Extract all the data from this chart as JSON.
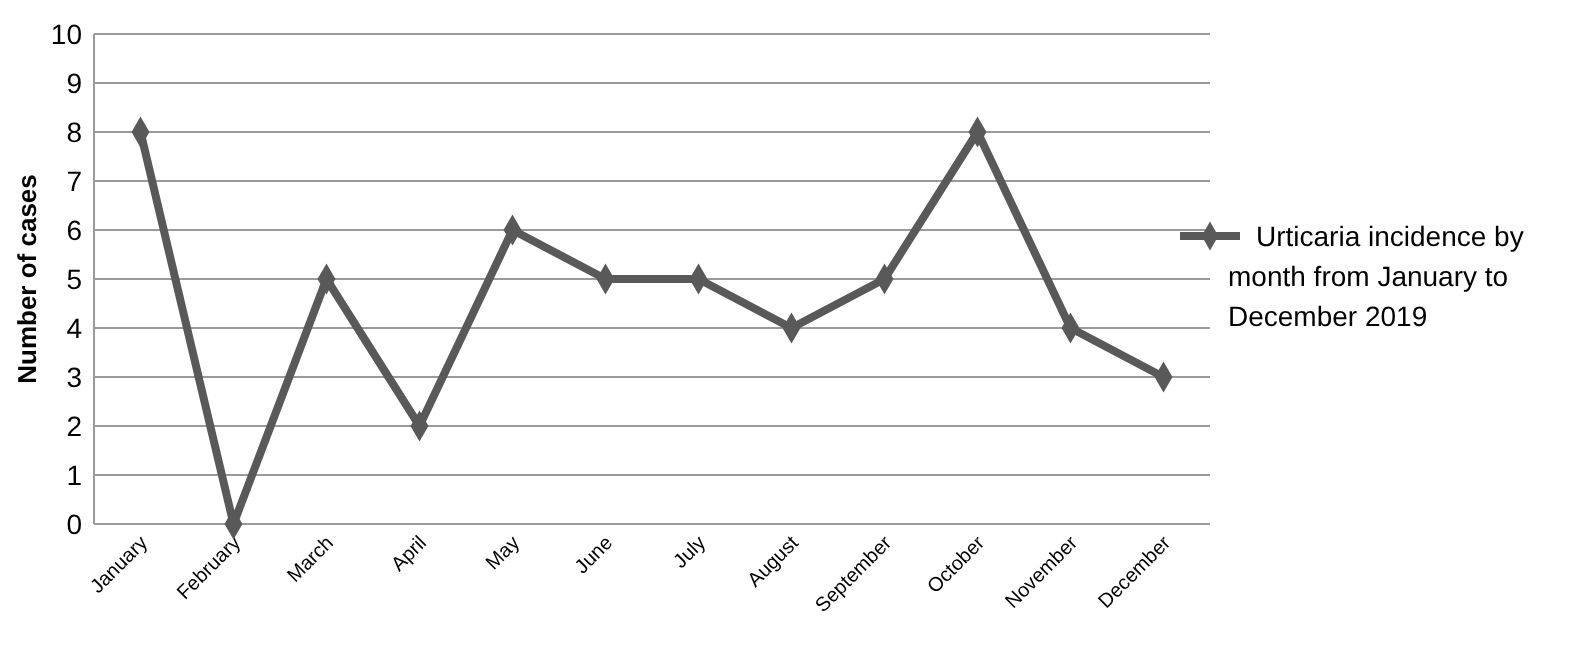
{
  "chart_data": {
    "type": "line",
    "ylabel": "Number of cases",
    "categories": [
      "January",
      "February",
      "March",
      "April",
      "May",
      "June",
      "July",
      "August",
      "September",
      "October",
      "November",
      "December"
    ],
    "series": [
      {
        "name": "Urticaria incidence by month from January to December 2019",
        "color": "#595959",
        "values": [
          8,
          0,
          5,
          2,
          6,
          5,
          5,
          4,
          5,
          8,
          4,
          3
        ]
      }
    ],
    "ylim": [
      0,
      10
    ],
    "yticks": [
      0,
      1,
      2,
      3,
      4,
      5,
      6,
      7,
      8,
      9,
      10
    ],
    "grid": "y",
    "legend": "right",
    "marker": "diamond",
    "line_style": "solid"
  }
}
